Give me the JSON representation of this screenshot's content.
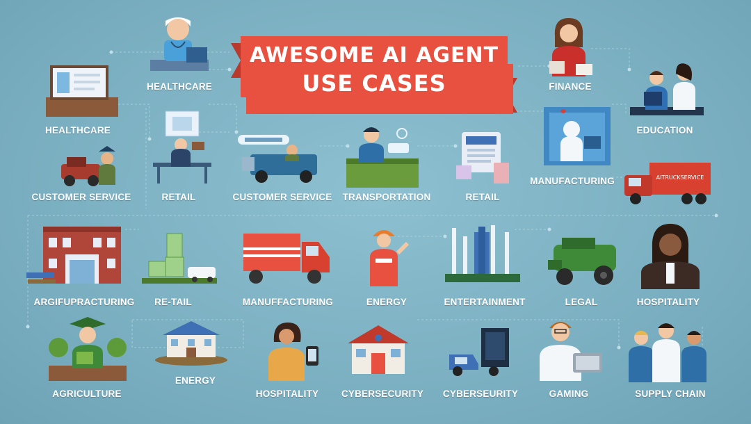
{
  "title": {
    "line1": "AWESOME AI AGENT",
    "line2": "USE CASES"
  },
  "colors": {
    "background": "#7fb3c4",
    "banner": "#e8503f",
    "banner_dark": "#b93a2d"
  },
  "labels": [
    {
      "id": "healthcare-top",
      "text": "HEALTHCARE"
    },
    {
      "id": "finance",
      "text": "FINANCE"
    },
    {
      "id": "healthcare-left",
      "text": "HEALTHCARE"
    },
    {
      "id": "education",
      "text": "EDUCATION"
    },
    {
      "id": "customer-service-1",
      "text": "CUSTOMER SERVICE"
    },
    {
      "id": "retail-1",
      "text": "RETAIL"
    },
    {
      "id": "customer-service-2",
      "text": "CUSTOMER SERVICE"
    },
    {
      "id": "transportation",
      "text": "TRANSPORTATION"
    },
    {
      "id": "retail-2",
      "text": "RETAIL"
    },
    {
      "id": "manufacturing-1",
      "text": "MANUFACTURING"
    },
    {
      "id": "argifupracturing",
      "text": "ARGIFUPRACTURING"
    },
    {
      "id": "re-tail",
      "text": "RE-TAIL"
    },
    {
      "id": "manufacturing-2",
      "text": "MANUFFACTURING"
    },
    {
      "id": "energy-1",
      "text": "ENERGY"
    },
    {
      "id": "entertainment",
      "text": "ENTERTAINMENT"
    },
    {
      "id": "legal",
      "text": "LEGAL"
    },
    {
      "id": "hospitality-1",
      "text": "HOSPITALITY"
    },
    {
      "id": "energy-2",
      "text": "ENERGY"
    },
    {
      "id": "agriculture",
      "text": "AGRICULTURE"
    },
    {
      "id": "hospitality-2",
      "text": "HOSPITALITY"
    },
    {
      "id": "cybersecurity-1",
      "text": "CYBERSECURITY"
    },
    {
      "id": "cybersecurity-2",
      "text": "CYBERSEURITY"
    },
    {
      "id": "gaming",
      "text": "GAMING"
    },
    {
      "id": "supply-chain",
      "text": "SUPPLY CHAIN"
    }
  ],
  "truck_sign": "AITRUCKSERVICE"
}
